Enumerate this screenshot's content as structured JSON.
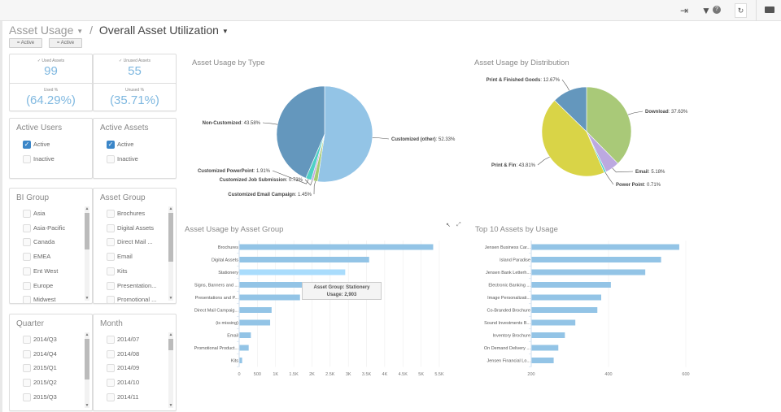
{
  "toolbar": {
    "icons": [
      "exit-icon",
      "filter-icon",
      "help-icon",
      "refresh-icon",
      "folder-icon"
    ],
    "help": "?",
    "refresh": "↻"
  },
  "breadcrumb": {
    "parent": "Asset Usage",
    "separator": "/",
    "current": "Overall Asset Utilization"
  },
  "filter_buttons": [
    "= Active",
    "= Active"
  ],
  "kpis": [
    {
      "label": "✓ Used Assets",
      "value": "99"
    },
    {
      "label": "✓ Unused Assets",
      "value": "55"
    },
    {
      "label": "Used %",
      "value": "(64.29%)"
    },
    {
      "label": "Unused %",
      "value": "(35.71%)"
    }
  ],
  "filters": {
    "active_users": {
      "title": "Active Users",
      "options": [
        {
          "label": "Active",
          "checked": true
        },
        {
          "label": "Inactive",
          "checked": false
        }
      ]
    },
    "active_assets": {
      "title": "Active Assets",
      "options": [
        {
          "label": "Active",
          "checked": true
        },
        {
          "label": "Inactive",
          "checked": false
        }
      ]
    },
    "bi_group": {
      "title": "BI Group",
      "options": [
        "Asia",
        "Asia-Pacific",
        "Canada",
        "EMEA",
        "Ent West",
        "Europe",
        "Midwest"
      ]
    },
    "asset_group": {
      "title": "Asset Group",
      "options": [
        "Brochures",
        "Digital Assets",
        "Direct Mail ...",
        "Email",
        "Kits",
        "Presentation...",
        "Promotional ..."
      ]
    },
    "quarter": {
      "title": "Quarter",
      "options": [
        "2014/Q3",
        "2014/Q4",
        "2015/Q1",
        "2015/Q2",
        "2015/Q3"
      ]
    },
    "month": {
      "title": "Month",
      "options": [
        "2014/07",
        "2014/08",
        "2014/09",
        "2014/10",
        "2014/11"
      ]
    }
  },
  "chart_data": [
    {
      "type": "pie",
      "title": "Asset Usage by Type",
      "slices": [
        {
          "name": "Customized (other)",
          "value": 52.33,
          "color": "#93c4e6"
        },
        {
          "name": "Customized Email Campaign",
          "value": 1.45,
          "color": "#a6cb72"
        },
        {
          "name": "Customized Job Submission",
          "value": 0.73,
          "color": "#c2a9e2"
        },
        {
          "name": "Customized PowerPoint",
          "value": 1.91,
          "color": "#4fd0c6"
        },
        {
          "name": "Non-Customized",
          "value": 43.58,
          "color": "#6497bd"
        }
      ]
    },
    {
      "type": "pie",
      "title": "Asset Usage by Distribution",
      "slices": [
        {
          "name": "Download",
          "value": 37.63,
          "color": "#a9c978"
        },
        {
          "name": "Email",
          "value": 5.18,
          "color": "#bca9e0"
        },
        {
          "name": "Power Point",
          "value": 0.71,
          "color": "#4fd0c6"
        },
        {
          "name": "Print & Fin",
          "value": 43.81,
          "color": "#d9d447"
        },
        {
          "name": "Print & Finished Goods",
          "value": 12.67,
          "color": "#6497bd"
        }
      ]
    },
    {
      "type": "bar",
      "orientation": "horizontal",
      "title": "Asset Usage by Asset Group",
      "categories": [
        "Brochures",
        "Digital Assets",
        "Stationery",
        "Signs, Banners and ...",
        "Presentations and P...",
        "Direct Mail Campaig...",
        "(is missing)",
        "Email",
        "Promotional Product...",
        "Kits"
      ],
      "values": [
        5320,
        3560,
        2903,
        2050,
        1660,
        880,
        840,
        310,
        250,
        70
      ],
      "xlim": [
        0,
        5500
      ],
      "xticks": [
        "0",
        "500",
        "1K",
        "1.5K",
        "2K",
        "2.5K",
        "3K",
        "3.5K",
        "4K",
        "4.5K",
        "5K",
        "5.5K"
      ],
      "highlight": "Stationery",
      "tooltip": {
        "line1": "Asset Group: Stationery",
        "line2": "Usage: 2,903"
      },
      "color": "#93c4e6",
      "highlight_color": "#a9dcfc"
    },
    {
      "type": "bar",
      "orientation": "horizontal",
      "title": "Top 10 Assets by Usage",
      "categories": [
        "Jensen Business Car...",
        "Island Paradise",
        "Jensen Bank Letterh...",
        "Electronic Banking ...",
        "Image Personalizati...",
        "Co-Branded Brochure",
        "Sound Investments B...",
        "Inventory Brochure",
        "On Demand Delivery ...",
        "Jensen Financial Lo..."
      ],
      "values": [
        582,
        535,
        494,
        405,
        380,
        370,
        313,
        286,
        269,
        257
      ],
      "xlim": [
        200,
        600
      ],
      "xticks": [
        "200",
        "400",
        "600"
      ],
      "color": "#93c4e6"
    }
  ]
}
